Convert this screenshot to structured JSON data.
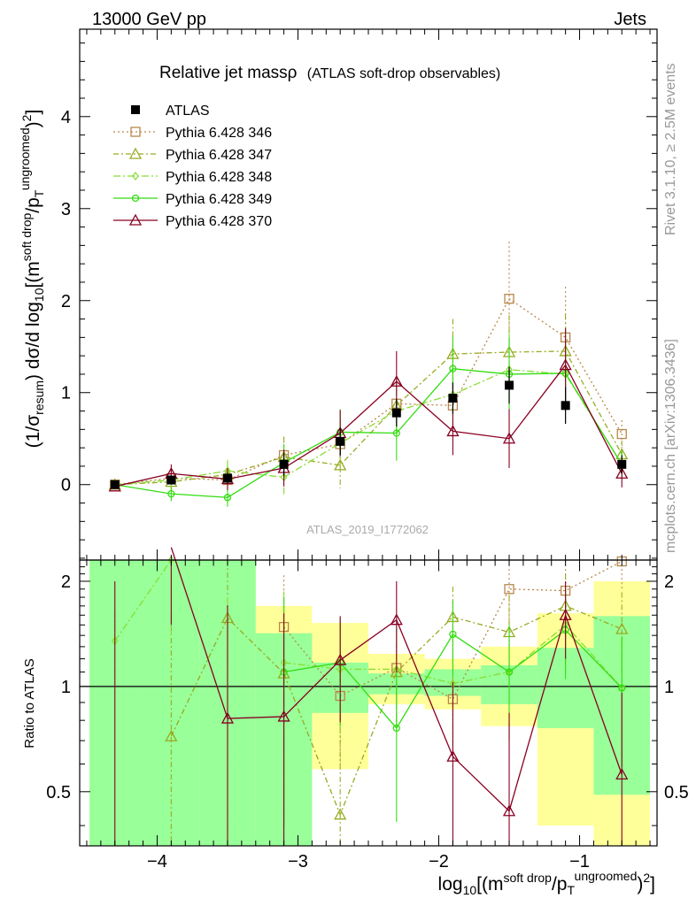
{
  "header": {
    "left": "13000 GeV pp",
    "right": "Jets"
  },
  "side_labels": {
    "rivet": "Rivet 3.1.10, ≥ 2.5M events",
    "mcplots": "mcplots.cern.ch [arXiv:1306.3436]"
  },
  "watermark": "ATLAS_2019_I1772062",
  "chart_data": [
    {
      "type": "line",
      "title": "Relative jet massρ",
      "subtitle": "(ATLAS soft-drop observables)",
      "ylabel": "(1/σresum) dσ/d log10[(m^soft drop/pT^ungroomed)^2]",
      "xlabel": "log10[(m^soft drop/pT^ungroomed)^2]",
      "xlim": [
        -4.55,
        -0.45
      ],
      "ylim": [
        -0.82,
        4.95
      ],
      "yticks": [
        0,
        1,
        2,
        3,
        4
      ],
      "xticks": [
        -4,
        -3,
        -2,
        -1
      ],
      "xtick_labels": [
        "−4",
        "−3",
        "−2",
        "−1"
      ],
      "x": [
        -4.3,
        -3.9,
        -3.5,
        -3.1,
        -2.7,
        -2.3,
        -1.9,
        -1.5,
        -1.1,
        -0.7
      ],
      "x_edges": [
        -4.5,
        -4.1,
        -3.7,
        -3.3,
        -2.9,
        -2.5,
        -2.1,
        -1.7,
        -1.3,
        -0.9,
        -0.5
      ],
      "data": {
        "name": "ATLAS",
        "y": [
          0.0,
          0.05,
          0.07,
          0.22,
          0.47,
          0.78,
          0.94,
          1.08,
          0.86,
          0.22
        ],
        "err": [
          0.0,
          0.05,
          0.06,
          0.12,
          0.15,
          0.15,
          0.17,
          0.2,
          0.2,
          0.1
        ]
      },
      "series": [
        {
          "name": "Pythia 6.428 346",
          "color": "#b8874a",
          "dash": "2,3",
          "marker": "square",
          "y": [
            0.0,
            0.07,
            0.05,
            0.32,
            0.44,
            0.88,
            0.86,
            2.02,
            1.6,
            0.55
          ],
          "err": [
            0.03,
            0.1,
            0.12,
            0.2,
            0.25,
            0.3,
            0.35,
            0.62,
            0.55,
            0.15
          ]
        },
        {
          "name": "Pythia 6.428 347",
          "color": "#99aa22",
          "dash": "6,3,2,3",
          "marker": "triangle",
          "y": [
            0.0,
            0.03,
            0.11,
            0.3,
            0.21,
            0.86,
            1.42,
            1.44,
            1.45,
            0.33
          ],
          "err": [
            0.03,
            0.1,
            0.14,
            0.22,
            0.25,
            0.3,
            0.38,
            0.4,
            0.4,
            0.15
          ]
        },
        {
          "name": "Pythia 6.428 348",
          "color": "#88dd33",
          "dash": "8,3,2,3",
          "marker": "diamond",
          "y": [
            0.0,
            0.05,
            0.15,
            0.08,
            0.45,
            0.8,
            0.98,
            1.25,
            1.2,
            0.22
          ],
          "err": [
            0.03,
            0.1,
            0.12,
            0.2,
            0.25,
            0.3,
            0.35,
            0.4,
            0.4,
            0.15
          ]
        },
        {
          "name": "Pythia 6.428 349",
          "color": "#33dd11",
          "dash": "",
          "marker": "circle",
          "y": [
            0.0,
            -0.1,
            -0.14,
            0.24,
            0.57,
            0.56,
            1.26,
            1.2,
            1.21,
            0.22
          ],
          "err": [
            0.03,
            0.08,
            0.1,
            0.2,
            0.25,
            0.3,
            0.35,
            0.4,
            0.35,
            0.15
          ]
        },
        {
          "name": "Pythia 6.428 370",
          "color": "#880022",
          "dash": "",
          "marker": "triangle",
          "y": [
            -0.02,
            0.12,
            0.06,
            0.18,
            0.56,
            1.12,
            0.58,
            0.5,
            1.3,
            0.12
          ],
          "err": [
            0.03,
            0.1,
            0.12,
            0.2,
            0.25,
            0.33,
            0.26,
            0.32,
            0.4,
            0.15
          ]
        }
      ]
    },
    {
      "type": "line",
      "ylabel": "Ratio to ATLAS",
      "ylim": [
        0.35,
        2.3
      ],
      "yticks": [
        0.5,
        1,
        2
      ],
      "ytick_labels": [
        "0.5",
        "1",
        "2"
      ],
      "band_stat": [
        [
          0.3,
          2.5
        ],
        [
          0.3,
          2.5
        ],
        [
          0.3,
          2.5
        ],
        [
          0.3,
          1.42
        ],
        [
          0.84,
          1.17
        ],
        [
          0.95,
          1.09
        ],
        [
          0.94,
          1.12
        ],
        [
          0.89,
          1.15
        ],
        [
          0.76,
          1.29
        ],
        [
          0.49,
          1.59
        ]
      ],
      "band_total": [
        [
          0.3,
          2.5
        ],
        [
          0.3,
          2.5
        ],
        [
          0.3,
          2.2
        ],
        [
          0.3,
          1.7
        ],
        [
          0.58,
          1.52
        ],
        [
          0.89,
          1.24
        ],
        [
          0.86,
          1.2
        ],
        [
          0.77,
          1.3
        ],
        [
          0.4,
          1.62
        ],
        [
          0.3,
          2.0
        ]
      ],
      "series": [
        {
          "name": "Pythia 6.428 346",
          "y": [
            null,
            null,
            null,
            1.48,
            0.94,
            1.13,
            0.92,
            1.9,
            1.88,
            2.28
          ],
          "err": [
            null,
            null,
            null,
            0.6,
            0.35,
            0.35,
            0.3,
            0.62,
            0.5,
            0.4
          ]
        },
        {
          "name": "Pythia 6.428 347",
          "y": [
            null,
            0.72,
            1.57,
            1.09,
            0.43,
            1.1,
            1.58,
            1.43,
            1.7,
            1.46
          ],
          "err": [
            null,
            0.9,
            0.8,
            0.7,
            0.4,
            0.35,
            0.35,
            0.4,
            0.4,
            0.4
          ]
        },
        {
          "name": "Pythia 6.428 348",
          "y": [
            1.35,
            2.3,
            null,
            1.17,
            1.12,
            1.12,
            1.02,
            1.1,
            1.5,
            0.99
          ],
          "err": [
            0.3,
            0.9,
            0.8,
            0.7,
            0.4,
            0.35,
            0.35,
            0.4,
            0.4,
            0.4
          ]
        },
        {
          "name": "Pythia 6.428 349",
          "y": [
            null,
            null,
            null,
            1.1,
            1.17,
            0.76,
            1.41,
            1.1,
            1.45,
            0.99
          ],
          "err": [
            null,
            null,
            null,
            0.7,
            0.4,
            0.35,
            0.35,
            0.4,
            0.4,
            0.4
          ]
        },
        {
          "name": "Pythia 6.428 370",
          "y": [
            null,
            2.5,
            0.81,
            0.82,
            1.19,
            1.55,
            0.63,
            0.44,
            1.6,
            0.56
          ],
          "err": [
            1.0,
            1.0,
            0.9,
            0.8,
            0.4,
            0.45,
            0.4,
            0.4,
            0.4,
            0.4
          ]
        }
      ]
    }
  ]
}
